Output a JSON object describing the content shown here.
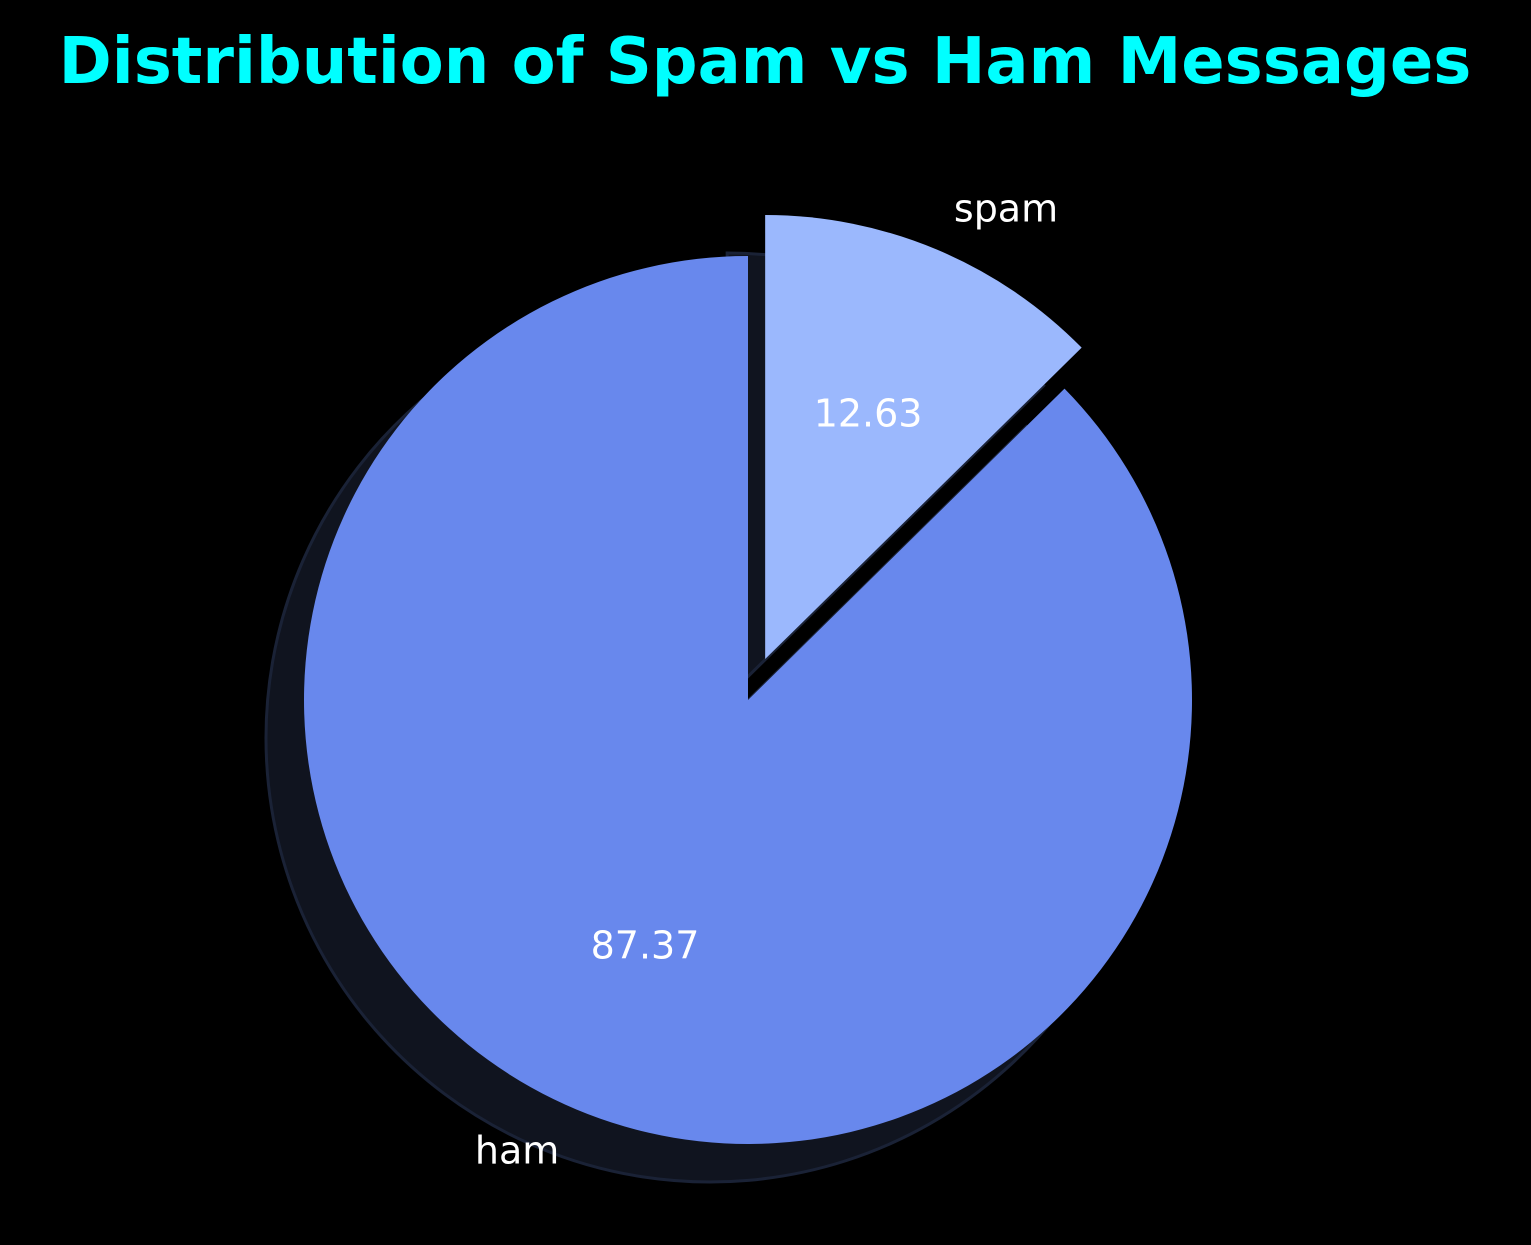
{
  "chart_data": {
    "type": "pie",
    "title": "Distribution of Spam vs Ham Messages",
    "categories": [
      "ham",
      "spam"
    ],
    "values": [
      87.37,
      12.63
    ],
    "value_labels": [
      "87.37",
      "12.63"
    ],
    "colors": [
      "#6888ed",
      "#9bb8fd"
    ],
    "explode": [
      0,
      0.1
    ],
    "shadow": true,
    "start_angle": "top, counter-clockwise",
    "colors_meta": {
      "background": "#000000",
      "title": "#00ffff",
      "label_text": "#ffffff",
      "shadow": "#10141f"
    }
  }
}
